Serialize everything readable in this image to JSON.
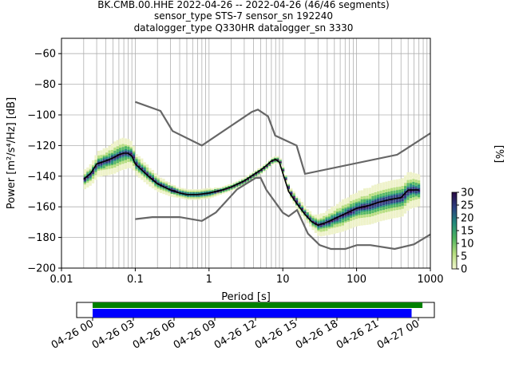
{
  "title": {
    "line1": "BK.CMB.00.HHE   2022-04-26 -- 2022-04-26  (46/46 segments)",
    "line2": "sensor_type STS-7 sensor_sn 192240",
    "line3": "datalogger_type Q330HR datalogger_sn 3330"
  },
  "chart_data": [
    {
      "type": "heatmap",
      "title": "BK.CMB.00.HHE   2022-04-26 -- 2022-04-26  (46/46 segments)",
      "xlabel": "Period [s]",
      "ylabel": "Power [m²/s⁴/Hz] [dB]",
      "x_scale": "log",
      "xlim": [
        0.01,
        1000
      ],
      "ylim": [
        -200,
        -50
      ],
      "x_tick_labels": [
        "0.01",
        "0.1",
        "1",
        "10",
        "100",
        "1000"
      ],
      "y_ticks": [
        -200,
        -180,
        -160,
        -140,
        -120,
        -100,
        -80,
        -60
      ],
      "grid": true,
      "colorbar": {
        "label": "[%]",
        "ticks": [
          0,
          5,
          10,
          15,
          20,
          25,
          30
        ],
        "range": [
          0,
          30
        ]
      },
      "colors": {
        "nlnm_nhnm": "#666666",
        "mode": "#000000",
        "bins": [
          "#eef2c8",
          "#b5dd7e",
          "#4fb55f",
          "#218a7c",
          "#2b3f80",
          "#3a0f5c"
        ]
      },
      "noise_model_high": {
        "x": [
          0.1,
          0.22,
          0.32,
          0.8,
          3.8,
          4.6,
          6.3,
          7.9,
          15.4,
          20,
          354.8,
          1000
        ],
        "y": [
          -91.5,
          -97.4,
          -110.5,
          -120,
          -98,
          -96.5,
          -101,
          -113.5,
          -120,
          -138.5,
          -126,
          -112
        ]
      },
      "noise_model_low": {
        "x": [
          0.1,
          0.17,
          0.4,
          0.8,
          1.24,
          2.4,
          4.3,
          5,
          6,
          10,
          12,
          15.6,
          21.9,
          31.6,
          45,
          70,
          101,
          154,
          328,
          600,
          1000
        ],
        "y": [
          -168,
          -166.7,
          -166.7,
          -169.2,
          -163.7,
          -148.6,
          -141.1,
          -141.1,
          -149,
          -163.8,
          -166.2,
          -162.1,
          -177.5,
          -185,
          -187.5,
          -187.5,
          -185,
          -185,
          -187.5,
          -184.5,
          -178
        ]
      },
      "mode": {
        "x": [
          0.02,
          0.025,
          0.03,
          0.04,
          0.05,
          0.06,
          0.07,
          0.08,
          0.09,
          0.1,
          0.15,
          0.2,
          0.3,
          0.4,
          0.5,
          0.7,
          1,
          1.5,
          2,
          3,
          4,
          5,
          6,
          7,
          8,
          9,
          10,
          12,
          15,
          20,
          25,
          30,
          40,
          60,
          100,
          150,
          200,
          300,
          400,
          500,
          700
        ],
        "y": [
          -142,
          -138,
          -132,
          -130,
          -128,
          -126,
          -125,
          -125,
          -127,
          -132,
          -140,
          -145,
          -149,
          -151,
          -152,
          -152,
          -151,
          -149,
          -147,
          -143,
          -139,
          -136,
          -133,
          -130,
          -129,
          -131,
          -138,
          -150,
          -157,
          -165,
          -170,
          -172,
          -170,
          -166,
          -161,
          -159,
          -157,
          -155,
          -154,
          -149,
          -149
        ]
      },
      "scatter": {
        "x": [
          0.02,
          0.025,
          0.03,
          0.04,
          0.05,
          0.06,
          0.07,
          0.08,
          0.09,
          0.1,
          0.15,
          0.2,
          0.3,
          0.4,
          0.5,
          0.7,
          1,
          1.5,
          2,
          3,
          4,
          5,
          6,
          7,
          8,
          9,
          10,
          12,
          15,
          20,
          25,
          30,
          40,
          60,
          100,
          150,
          200,
          300,
          400,
          500,
          700
        ],
        "spread_db": [
          6,
          7,
          8,
          9,
          10,
          10,
          10,
          9,
          8,
          7,
          6,
          5,
          4,
          3,
          3,
          3,
          3,
          2,
          2,
          2,
          2,
          2,
          2,
          2,
          2,
          2,
          2,
          3,
          4,
          4,
          5,
          7,
          8,
          10,
          11,
          12,
          12,
          12,
          12,
          12,
          10
        ]
      }
    },
    {
      "type": "bar",
      "title": "",
      "xlabel": "",
      "ylabel": "",
      "x_tick_labels": [
        "04-26 00",
        "04-26 03",
        "04-26 06",
        "04-26 09",
        "04-26 12",
        "04-26 15",
        "04-26 18",
        "04-26 21",
        "04-27 00"
      ],
      "series": [
        {
          "color": "#008000",
          "start_hours": 0.0,
          "end_hours": 24.3
        },
        {
          "color": "#0000ff",
          "start_hours": 0.0,
          "end_hours": 23.5
        }
      ]
    }
  ]
}
